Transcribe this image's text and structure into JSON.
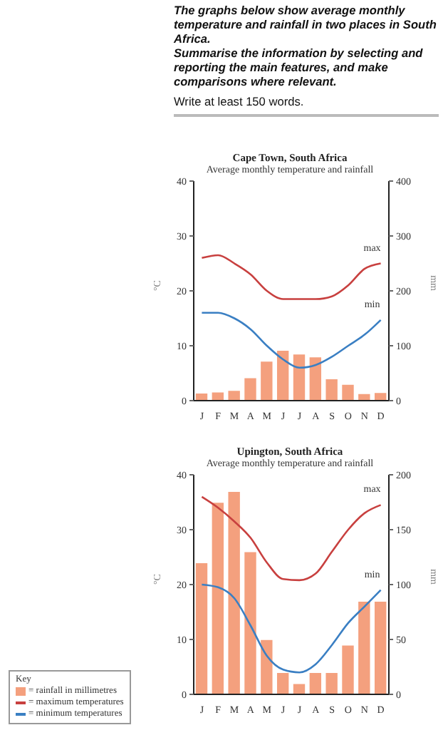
{
  "chart_data": [
    {
      "type": "bar",
      "title": "Cape Town, South Africa",
      "subtitle": "Average monthly temperature and rainfall",
      "annotations": [
        "The graphs below show average monthly temperature and rainfall in two places in South Africa.",
        "Summarise the information by selecting and reporting the main features, and make comparisons where relevant.",
        "Write at least 150 words.",
        "max",
        "min"
      ],
      "categories": [
        "J",
        "F",
        "M",
        "A",
        "M",
        "J",
        "J",
        "A",
        "S",
        "O",
        "N",
        "D"
      ],
      "series": [
        {
          "axis": "y2",
          "color": "#f4a07e",
          "values": [
            14,
            16,
            19,
            42,
            72,
            92,
            85,
            80,
            40,
            30,
            13,
            15
          ]
        },
        {
          "type": "line",
          "color": "#c8403f",
          "values": [
            26,
            26.5,
            25,
            23,
            20,
            18.5,
            18.5,
            18.5,
            19,
            21,
            24,
            25
          ]
        },
        {
          "type": "line",
          "color": "#3a7fc3",
          "values": [
            16,
            16,
            15,
            13,
            10,
            7.5,
            6,
            6.5,
            8,
            10,
            12,
            14.7
          ]
        }
      ],
      "ylabel": "°C",
      "y2label": "mm",
      "ylim": [
        0,
        40
      ],
      "yticks": [
        0,
        10,
        20,
        30,
        40
      ],
      "y2lim": [
        0,
        400
      ],
      "y2ticks": [
        0,
        100,
        200,
        300,
        400
      ],
      "grid": false,
      "legend": false,
      "marker": "none",
      "line_style": "solid"
    },
    {
      "type": "bar",
      "title": "Upington, South Africa",
      "subtitle": "Average monthly temperature and rainfall",
      "legend_title": "Key",
      "annotations": [
        "max",
        "min"
      ],
      "categories": [
        "J",
        "F",
        "M",
        "A",
        "M",
        "J",
        "J",
        "A",
        "S",
        "O",
        "N",
        "D"
      ],
      "series": [
        {
          "axis": "y2",
          "name": "= rainfall in millimetres",
          "color": "#f4a07e",
          "values": [
            120,
            175,
            185,
            130,
            50,
            20,
            10,
            20,
            20,
            45,
            85,
            85
          ]
        },
        {
          "type": "line",
          "name": "= maximum temperatures",
          "color": "#c8403f",
          "values": [
            36,
            34,
            31.5,
            28.5,
            24,
            21,
            20.8,
            22,
            26,
            30,
            33,
            34.5
          ]
        },
        {
          "type": "line",
          "name": "= minimum temperatures",
          "color": "#3a7fc3",
          "values": [
            20,
            19.5,
            17.5,
            12.5,
            7,
            4.5,
            4,
            5.5,
            9,
            13,
            16,
            19
          ]
        }
      ],
      "ylabel": "°C",
      "y2label": "mm",
      "ylim": [
        0,
        40
      ],
      "yticks": [
        0,
        10,
        20,
        30,
        40
      ],
      "y2lim": [
        0,
        200
      ],
      "y2ticks": [
        0,
        50,
        100,
        150,
        200
      ],
      "grid": false,
      "legend": "bottom left",
      "marker": "none",
      "line_style": "solid"
    }
  ]
}
